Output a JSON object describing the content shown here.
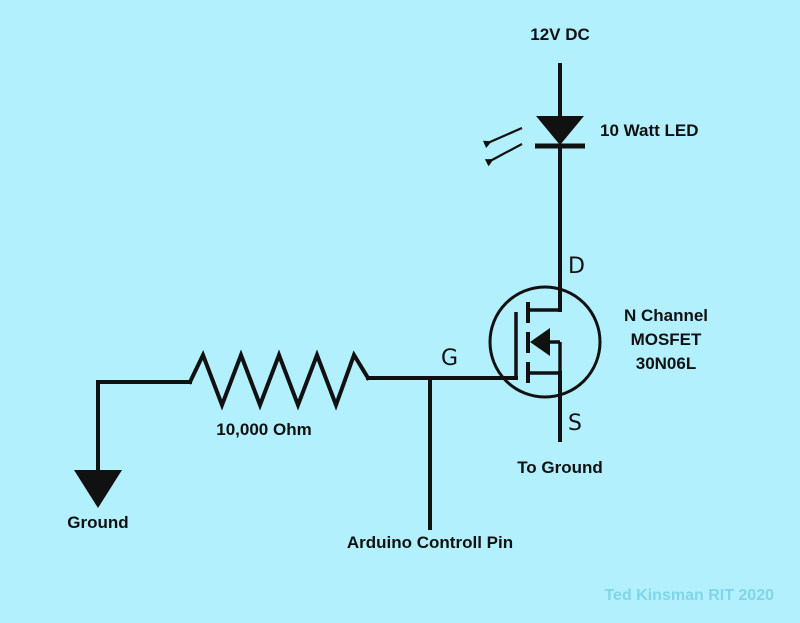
{
  "colors": {
    "background": "#b3f0fd",
    "ink": "#111111",
    "credit": "#7fd6e8"
  },
  "labels": {
    "supply": "12V DC",
    "led": "10 Watt LED",
    "drain": "D",
    "gate": "G",
    "source": "S",
    "mosfet_line1": "N Channel",
    "mosfet_line2": "MOSFET",
    "mosfet_line3": "30N06L",
    "resistor": "10,000 Ohm",
    "ground": "Ground",
    "to_ground": "To Ground",
    "arduino": "Arduino Controll Pin",
    "credit": "Ted Kinsman RIT 2020"
  },
  "components": {
    "led": {
      "symbol": "diode-led-icon"
    },
    "mosfet": {
      "symbol": "n-channel-mosfet-icon"
    },
    "resistor": {
      "symbol": "resistor-zigzag-icon"
    },
    "ground": {
      "symbol": "ground-triangle-icon"
    }
  }
}
